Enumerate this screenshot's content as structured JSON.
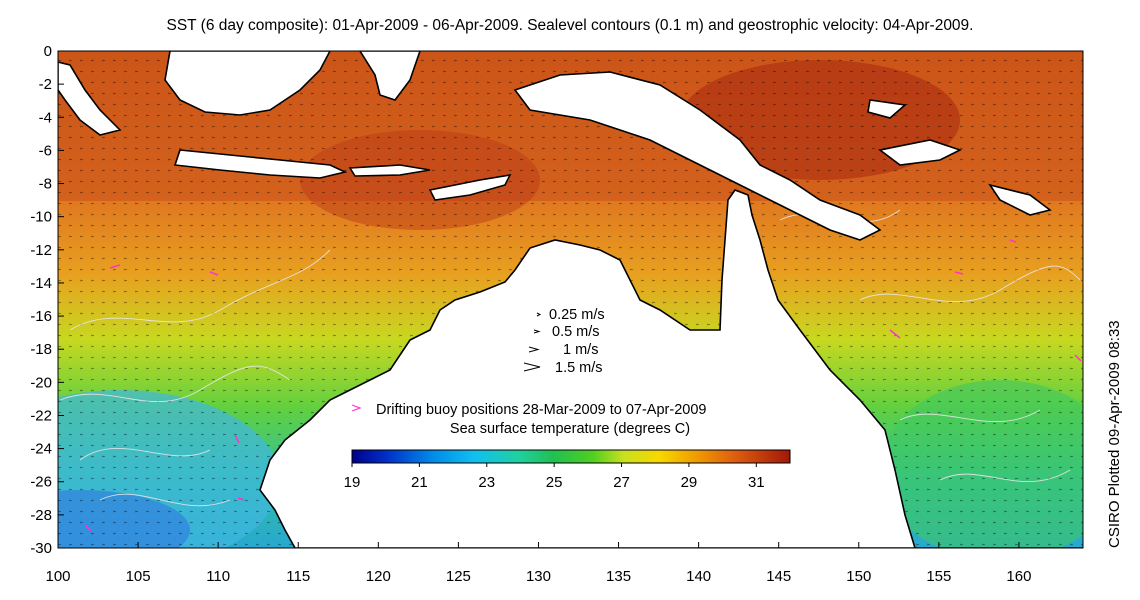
{
  "title": "SST (6 day composite): 01-Apr-2009 - 06-Apr-2009. Sealevel contours (0.1 m) and geostrophic velocity: 04-Apr-2009.",
  "credit": "CSIRO Plotted 09-Apr-2009 08:33",
  "axes": {
    "x_ticks": [
      "100",
      "105",
      "110",
      "115",
      "120",
      "125",
      "130",
      "135",
      "140",
      "145",
      "150",
      "155",
      "160"
    ],
    "y_ticks": [
      "0",
      "-2",
      "-4",
      "-6",
      "-8",
      "-10",
      "-12",
      "-14",
      "-16",
      "-18",
      "-20",
      "-22",
      "-24",
      "-26",
      "-28",
      "-30"
    ],
    "lon_range": [
      100,
      164
    ],
    "lat_range": [
      -30,
      0
    ]
  },
  "velocity_key": [
    "0.25 m/s",
    "0.5 m/s",
    "1 m/s",
    "1.5 m/s"
  ],
  "buoy_label": "Drifting buoy positions 28-Mar-2009 to 07-Apr-2009",
  "colorbar": {
    "title": "Sea surface temperature (degrees C)",
    "ticks": [
      "19",
      "21",
      "23",
      "25",
      "27",
      "29",
      "31"
    ],
    "range": [
      19,
      32
    ]
  },
  "colors": {
    "land": "#ffffff",
    "coast": "#000000",
    "contour": "#e8e8e8",
    "buoy": "#ff33cc",
    "warm": "#c8501a",
    "hot": "#a82810",
    "green": "#3cc850",
    "cool": "#28a0d8"
  }
}
